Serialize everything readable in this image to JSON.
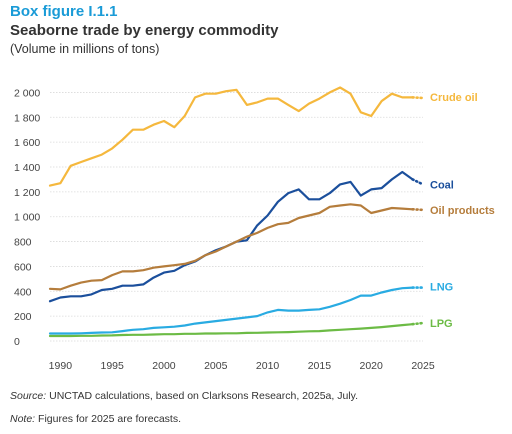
{
  "figure": {
    "box_label": "Box figure I.1.1",
    "title": "Seaborne trade by energy commodity",
    "subtitle": "(Volume in millions of tons)"
  },
  "footnotes": {
    "source_lead": "Source:",
    "source_text": " UNCTAD calculations, based on Clarksons Research, 2025a, July.",
    "note_lead": "Note:",
    "note_text": " Figures for 2025 are forecasts."
  },
  "chart_data": {
    "type": "line",
    "title": "Seaborne trade by energy commodity",
    "subtitle": "(Volume in millions of tons)",
    "xlabel": "",
    "ylabel": "",
    "xlim": [
      1989,
      2025
    ],
    "ylim": [
      0,
      2100
    ],
    "x_ticks": [
      "1990",
      "1995",
      "2000",
      "2005",
      "2010",
      "2015",
      "2020",
      "2025"
    ],
    "y_ticks": [
      "0",
      "200",
      "400",
      "600",
      "800",
      "1 000",
      "1 200",
      "1 400",
      "1 600",
      "1 800",
      "2 000"
    ],
    "grid": "horizontal",
    "legend": "direct labels at line ends (right)",
    "forecast": {
      "from": 2024,
      "to": 2025,
      "style": "dotted"
    },
    "x": [
      1989,
      1990,
      1991,
      1992,
      1993,
      1994,
      1995,
      1996,
      1997,
      1998,
      1999,
      2000,
      2001,
      2002,
      2003,
      2004,
      2005,
      2006,
      2007,
      2008,
      2009,
      2010,
      2011,
      2012,
      2013,
      2014,
      2015,
      2016,
      2017,
      2018,
      2019,
      2020,
      2021,
      2022,
      2023,
      2024,
      2025
    ],
    "series": [
      {
        "name": "Crude oil",
        "color": "#f5b83d",
        "values": [
          1250,
          1270,
          1410,
          1440,
          1470,
          1500,
          1550,
          1620,
          1700,
          1700,
          1740,
          1770,
          1720,
          1810,
          1960,
          1990,
          1990,
          2010,
          2020,
          1900,
          1920,
          1950,
          1950,
          1900,
          1850,
          1910,
          1950,
          2000,
          2040,
          1990,
          1840,
          1810,
          1930,
          1990,
          1960,
          1960,
          1955
        ]
      },
      {
        "name": "Coal",
        "color": "#1b4f9c",
        "values": [
          320,
          350,
          360,
          360,
          375,
          410,
          420,
          445,
          445,
          455,
          510,
          550,
          565,
          610,
          640,
          690,
          730,
          760,
          800,
          810,
          930,
          1010,
          1120,
          1190,
          1220,
          1140,
          1140,
          1190,
          1260,
          1280,
          1170,
          1220,
          1230,
          1300,
          1360,
          1300,
          1260
        ]
      },
      {
        "name": "Oil products",
        "color": "#b57d3c",
        "values": [
          420,
          415,
          445,
          470,
          485,
          490,
          530,
          560,
          560,
          570,
          590,
          600,
          610,
          620,
          645,
          690,
          720,
          760,
          800,
          840,
          870,
          910,
          940,
          950,
          990,
          1010,
          1030,
          1080,
          1090,
          1100,
          1090,
          1030,
          1050,
          1070,
          1065,
          1060,
          1055
        ]
      },
      {
        "name": "LNG",
        "color": "#29abe2",
        "values": [
          60,
          60,
          60,
          62,
          65,
          68,
          70,
          80,
          90,
          95,
          105,
          110,
          115,
          125,
          140,
          150,
          160,
          170,
          180,
          190,
          200,
          230,
          250,
          245,
          245,
          250,
          255,
          275,
          300,
          330,
          365,
          365,
          390,
          410,
          425,
          430,
          430
        ]
      },
      {
        "name": "LPG",
        "color": "#6cbb45",
        "values": [
          40,
          40,
          40,
          42,
          42,
          44,
          45,
          48,
          50,
          50,
          52,
          55,
          55,
          58,
          58,
          60,
          60,
          62,
          62,
          65,
          66,
          68,
          70,
          72,
          75,
          78,
          80,
          85,
          90,
          95,
          100,
          105,
          112,
          120,
          128,
          135,
          145
        ]
      }
    ]
  }
}
